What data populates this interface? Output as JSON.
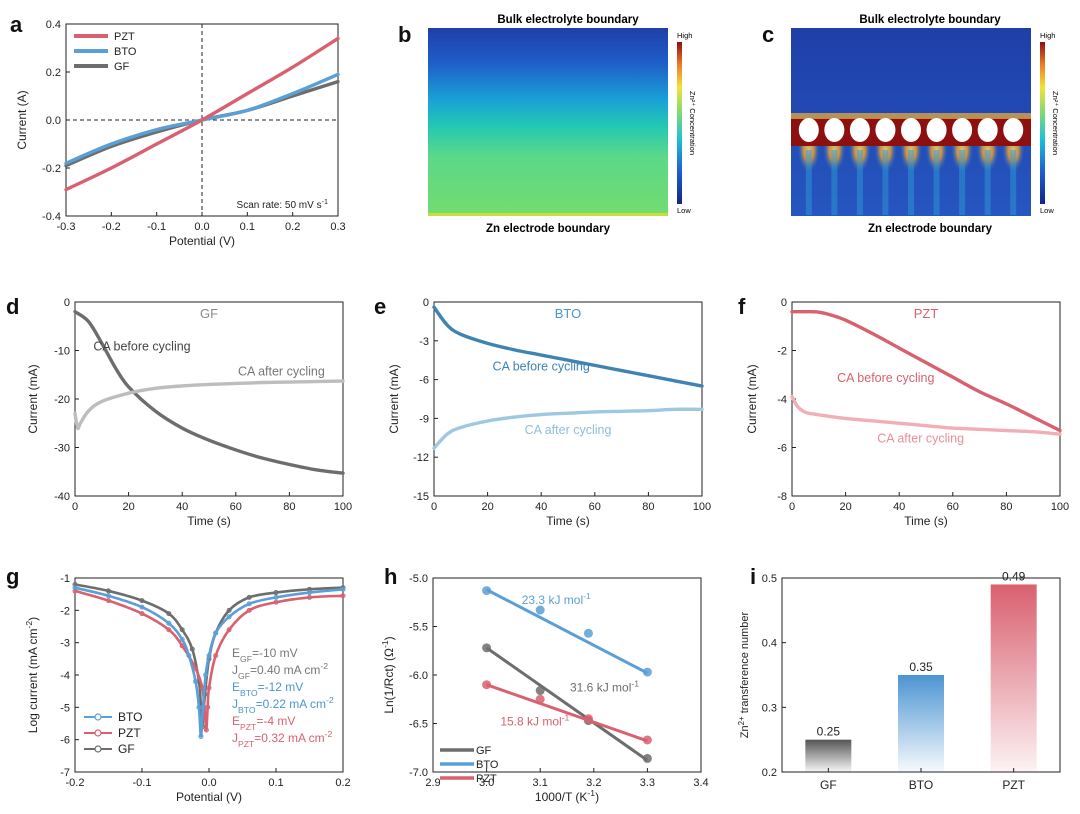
{
  "colors": {
    "pzt": "#d9606f",
    "bto": "#5a9fd6",
    "gf": "#6d6d6d",
    "bto_dark": "#3f83b3",
    "bto_light": "#9ec7e0",
    "gf_light": "#bdbdbd",
    "pzt_light": "#f0aeb6"
  },
  "chart_data": [
    {
      "panel": "a",
      "type": "line",
      "xlabel": "Potential (V)",
      "ylabel": "Current (A)",
      "xlim": [
        -0.3,
        0.3
      ],
      "ylim": [
        -0.4,
        0.4
      ],
      "xticks": [
        "-0.3",
        "-0.2",
        "-0.1",
        "0.0",
        "0.1",
        "0.2",
        "0.3"
      ],
      "yticks": [
        "-0.4",
        "-0.2",
        "0.0",
        "0.2",
        "0.4"
      ],
      "annotation": "Scan rate: 50 mV s",
      "annotation_sup": "-1",
      "legend_position": "top-left",
      "series": [
        {
          "name": "PZT",
          "color": "pzt",
          "x": [
            -0.3,
            -0.2,
            -0.1,
            0,
            0.1,
            0.2,
            0.3
          ],
          "y": [
            -0.29,
            -0.2,
            -0.1,
            0.0,
            0.11,
            0.22,
            0.34
          ]
        },
        {
          "name": "BTO",
          "color": "bto",
          "x": [
            -0.3,
            -0.2,
            -0.1,
            0,
            0.1,
            0.2,
            0.3
          ],
          "y": [
            -0.18,
            -0.1,
            -0.04,
            0.0,
            0.04,
            0.11,
            0.19
          ]
        },
        {
          "name": "GF",
          "color": "gf",
          "x": [
            -0.3,
            -0.2,
            -0.1,
            0,
            0.1,
            0.2,
            0.3
          ],
          "y": [
            -0.19,
            -0.11,
            -0.05,
            0.0,
            0.04,
            0.1,
            0.16
          ]
        }
      ]
    },
    {
      "panel": "b",
      "type": "heatmap",
      "top_label": "Bulk electrolyte boundary",
      "bottom_label": "Zn electrode boundary",
      "colorbar_high": "High",
      "colorbar_low": "Low",
      "colorbar_label": "Zn²⁺ Concentration",
      "pattern": "gradient"
    },
    {
      "panel": "c",
      "type": "heatmap",
      "top_label": "Bulk electrolyte boundary",
      "bottom_label": "Zn electrode boundary",
      "colorbar_high": "High",
      "colorbar_low": "Low",
      "colorbar_label": "Zn²⁺ Concentration",
      "pattern": "particles",
      "particle_count": 9
    },
    {
      "panel": "d",
      "type": "line",
      "title": "GF",
      "xlabel": "Time (s)",
      "ylabel": "Current (mA)",
      "xlim": [
        0,
        100
      ],
      "ylim": [
        -40,
        0
      ],
      "xticks": [
        "0",
        "20",
        "40",
        "60",
        "80",
        "100"
      ],
      "yticks": [
        "-40",
        "-30",
        "-20",
        "-10",
        "0"
      ],
      "series": [
        {
          "name": "CA before cycling",
          "color": "gf",
          "x": [
            0,
            5,
            10,
            15,
            20,
            30,
            40,
            50,
            60,
            70,
            80,
            90,
            100
          ],
          "y": [
            -2,
            -4,
            -8.5,
            -13.5,
            -17.5,
            -22.5,
            -26,
            -28.5,
            -30.5,
            -32.2,
            -33.5,
            -34.6,
            -35.3
          ]
        },
        {
          "name": "CA after cycling",
          "color": "gf_light",
          "x": [
            0,
            1,
            2,
            5,
            10,
            20,
            30,
            40,
            50,
            60,
            70,
            80,
            90,
            100
          ],
          "y": [
            -23,
            -26,
            -25,
            -22.5,
            -20.5,
            -18.8,
            -17.8,
            -17.3,
            -17.0,
            -16.8,
            -16.6,
            -16.5,
            -16.4,
            -16.3
          ]
        }
      ],
      "labels": [
        {
          "text": "CA before cycling",
          "x": 25,
          "y": -10,
          "color": "#444444"
        },
        {
          "text": "CA after cycling",
          "x": 77,
          "y": -15.2,
          "color": "#777777"
        }
      ]
    },
    {
      "panel": "e",
      "type": "line",
      "title": "BTO",
      "xlabel": "Time (s)",
      "ylabel": "Current (mA)",
      "xlim": [
        0,
        100
      ],
      "ylim": [
        -15,
        0
      ],
      "xticks": [
        "0",
        "20",
        "40",
        "60",
        "80",
        "100"
      ],
      "yticks": [
        "-15",
        "-12",
        "-9",
        "-6",
        "-3",
        "0"
      ],
      "series": [
        {
          "name": "CA before cycling",
          "color": "bto_dark",
          "x": [
            0,
            5,
            10,
            20,
            30,
            40,
            50,
            60,
            70,
            80,
            90,
            100
          ],
          "y": [
            -0.4,
            -1.8,
            -2.5,
            -3.2,
            -3.7,
            -4.1,
            -4.5,
            -4.9,
            -5.3,
            -5.7,
            -6.1,
            -6.5
          ]
        },
        {
          "name": "CA after cycling",
          "color": "bto_light",
          "x": [
            0,
            5,
            10,
            20,
            30,
            40,
            50,
            60,
            70,
            80,
            90,
            100
          ],
          "y": [
            -11.3,
            -10.2,
            -9.7,
            -9.2,
            -8.9,
            -8.7,
            -8.6,
            -8.5,
            -8.45,
            -8.4,
            -8.3,
            -8.3
          ]
        }
      ],
      "labels": [
        {
          "text": "CA before cycling",
          "x": 40,
          "y": -5.3,
          "color": "#3f83b3"
        },
        {
          "text": "CA after cycling",
          "x": 50,
          "y": -10.2,
          "color": "#8fbdd9"
        }
      ]
    },
    {
      "panel": "f",
      "type": "line",
      "title": "PZT",
      "xlabel": "Time (s)",
      "ylabel": "Current (mA)",
      "xlim": [
        0,
        100
      ],
      "ylim": [
        -8,
        0
      ],
      "xticks": [
        "0",
        "20",
        "40",
        "60",
        "80",
        "100"
      ],
      "yticks": [
        "-8",
        "-6",
        "-4",
        "-2",
        "0"
      ],
      "series": [
        {
          "name": "CA before cycling",
          "color": "pzt",
          "x": [
            0,
            5,
            10,
            15,
            20,
            30,
            40,
            50,
            60,
            70,
            80,
            90,
            100
          ],
          "y": [
            -0.4,
            -0.4,
            -0.42,
            -0.55,
            -0.75,
            -1.3,
            -1.9,
            -2.5,
            -3.1,
            -3.7,
            -4.2,
            -4.75,
            -5.3
          ]
        },
        {
          "name": "CA after cycling",
          "color": "pzt_light",
          "x": [
            0,
            2,
            5,
            10,
            20,
            30,
            40,
            50,
            60,
            70,
            80,
            90,
            100
          ],
          "y": [
            -3.9,
            -4.3,
            -4.55,
            -4.65,
            -4.8,
            -4.9,
            -5.0,
            -5.1,
            -5.2,
            -5.25,
            -5.3,
            -5.35,
            -5.45
          ]
        }
      ],
      "labels": [
        {
          "text": "CA before cycling",
          "x": 35,
          "y": -3.3,
          "color": "#d9606f"
        },
        {
          "text": "CA after cycling",
          "x": 48,
          "y": -5.8,
          "color": "#e98e9a"
        }
      ]
    },
    {
      "panel": "g",
      "type": "line",
      "xlabel": "Potential (V)",
      "ylabel": "Log current (mA cm",
      "ylabel_sup": "-2",
      "ylabel_end": ")",
      "xlim": [
        -0.2,
        0.2
      ],
      "ylim": [
        -7,
        -1
      ],
      "xticks": [
        "-0.2",
        "-0.1",
        "0.0",
        "0.1",
        "0.2"
      ],
      "yticks": [
        "-7",
        "-6",
        "-5",
        "-4",
        "-3",
        "-2",
        "-1"
      ],
      "legend_position": "bottom-left",
      "series": [
        {
          "name": "BTO",
          "color": "bto",
          "x": [
            -0.2,
            -0.15,
            -0.1,
            -0.06,
            -0.04,
            -0.03,
            -0.02,
            -0.015,
            -0.012,
            -0.009,
            -0.005,
            0.0,
            0.01,
            0.03,
            0.06,
            0.1,
            0.15,
            0.2
          ],
          "y": [
            -1.3,
            -1.55,
            -1.9,
            -2.4,
            -2.9,
            -3.4,
            -4.2,
            -5.0,
            -5.9,
            -5.0,
            -4.0,
            -3.4,
            -2.7,
            -2.2,
            -1.8,
            -1.6,
            -1.45,
            -1.35
          ]
        },
        {
          "name": "PZT",
          "color": "pzt",
          "x": [
            -0.2,
            -0.15,
            -0.1,
            -0.06,
            -0.04,
            -0.02,
            -0.01,
            -0.006,
            -0.004,
            -0.002,
            0.0,
            0.01,
            0.03,
            0.06,
            0.1,
            0.15,
            0.2
          ],
          "y": [
            -1.4,
            -1.7,
            -2.1,
            -2.6,
            -3.1,
            -3.8,
            -4.4,
            -5.2,
            -5.7,
            -5.0,
            -4.4,
            -3.4,
            -2.6,
            -2.0,
            -1.75,
            -1.6,
            -1.55
          ]
        },
        {
          "name": "GF",
          "color": "gf",
          "x": [
            -0.2,
            -0.15,
            -0.1,
            -0.06,
            -0.04,
            -0.025,
            -0.015,
            -0.012,
            -0.01,
            -0.006,
            0.0,
            0.01,
            0.03,
            0.06,
            0.1,
            0.15,
            0.2
          ],
          "y": [
            -1.2,
            -1.4,
            -1.7,
            -2.1,
            -2.6,
            -3.2,
            -4.2,
            -5.0,
            -5.6,
            -4.6,
            -3.5,
            -2.7,
            -2.0,
            -1.6,
            -1.45,
            -1.35,
            -1.3
          ]
        }
      ],
      "annotations": [
        {
          "base": "E",
          "sub": "GF",
          "value": "=-10 mV",
          "color": "#777777"
        },
        {
          "base": "J",
          "sub": "GF",
          "value": "=0.40 mA cm",
          "sup": "-2",
          "color": "#777777"
        },
        {
          "base": "E",
          "sub": "BTO",
          "value": "=-12 mV",
          "color": "#4c94d2"
        },
        {
          "base": "J",
          "sub": "BTO",
          "value": "=0.22 mA cm",
          "sup": "-2",
          "color": "#4c94d2"
        },
        {
          "base": "E",
          "sub": "PZT",
          "value": "=-4 mV",
          "color": "#d9606f"
        },
        {
          "base": "J",
          "sub": "PZT",
          "value": "=0.32 mA cm",
          "sup": "-2",
          "color": "#d9606f"
        }
      ]
    },
    {
      "panel": "h",
      "type": "scatter",
      "xlabel": "1000/T (K",
      "xlabel_sup": "-1",
      "xlabel_end": ")",
      "ylabel": "Ln(1/Rct) (Ω",
      "ylabel_sup": "-1",
      "ylabel_end": ")",
      "xlim": [
        2.9,
        3.4
      ],
      "ylim": [
        -7.0,
        -5.0
      ],
      "xticks": [
        "2.9",
        "3.0",
        "3.1",
        "3.2",
        "3.3",
        "3.4"
      ],
      "yticks": [
        "-7.0",
        "-6.5",
        "-6.0",
        "-5.5",
        "-5.0"
      ],
      "legend_position": "bottom-left",
      "series": [
        {
          "name": "GF",
          "color": "gf",
          "x": [
            3.0,
            3.1,
            3.19,
            3.3
          ],
          "y": [
            -5.72,
            -6.16,
            -6.47,
            -6.86
          ],
          "fit": [
            [
              3.0,
              -5.72
            ],
            [
              3.3,
              -6.88
            ]
          ],
          "label": "31.6 kJ mol",
          "label_x": 3.22,
          "label_y": -6.17
        },
        {
          "name": "BTO",
          "color": "bto",
          "x": [
            3.0,
            3.1,
            3.19,
            3.3
          ],
          "y": [
            -5.13,
            -5.33,
            -5.57,
            -5.97
          ],
          "fit": [
            [
              3.0,
              -5.12
            ],
            [
              3.3,
              -5.98
            ]
          ],
          "label": "23.3 kJ mol",
          "label_x": 3.13,
          "label_y": -5.27
        },
        {
          "name": "PZT",
          "color": "pzt",
          "x": [
            3.0,
            3.1,
            3.19,
            3.3
          ],
          "y": [
            -6.1,
            -6.25,
            -6.45,
            -6.67
          ],
          "fit": [
            [
              3.0,
              -6.1
            ],
            [
              3.3,
              -6.68
            ]
          ],
          "label": "15.8 kJ mol",
          "label_x": 3.09,
          "label_y": -6.52
        }
      ]
    },
    {
      "panel": "i",
      "type": "bar",
      "ylabel": "Zn",
      "ylabel_sup": "2+",
      "ylabel_end": " transference number",
      "categories": [
        "GF",
        "BTO",
        "PZT"
      ],
      "values": [
        0.25,
        0.35,
        0.49
      ],
      "value_labels": [
        "0.25",
        "0.35",
        "0.49"
      ],
      "bar_colors": [
        "gf",
        "bto",
        "pzt"
      ],
      "ylim": [
        0.2,
        0.5
      ],
      "yticks": [
        "0.2",
        "0.3",
        "0.4",
        "0.5"
      ]
    }
  ]
}
